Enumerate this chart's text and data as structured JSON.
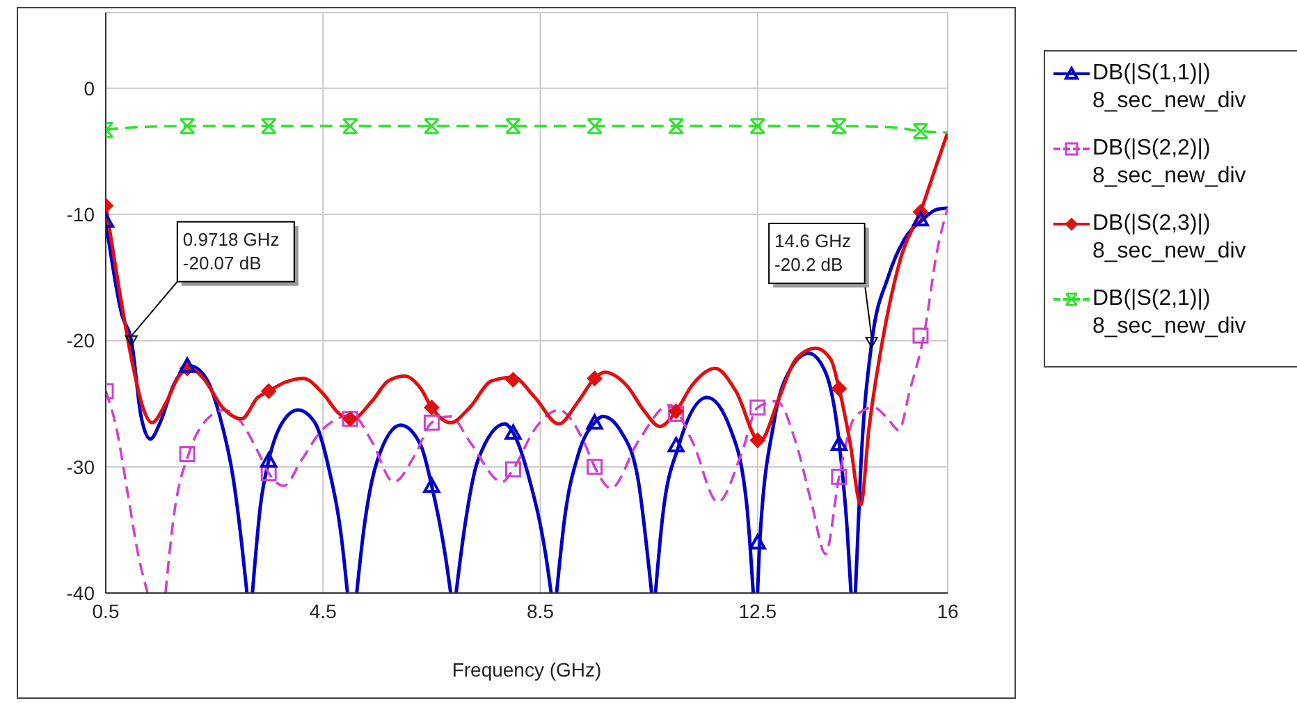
{
  "chart_data": {
    "type": "line",
    "xlabel": "Frequency (GHz)",
    "xlim": [
      0.5,
      16
    ],
    "xticks": [
      0.5,
      4.5,
      8.5,
      12.5,
      16
    ],
    "ylim": [
      -40,
      6
    ],
    "yticks": [
      0,
      -10,
      -20,
      -30,
      -40
    ],
    "grid": true,
    "legend": "right",
    "annotations": [
      {
        "text": "0.9718 GHz\n-20.07 dB",
        "x": 0.9718,
        "y": -20.07
      },
      {
        "text": "14.6 GHz\n-20.2 dB",
        "x": 14.6,
        "y": -20.2
      }
    ],
    "series": [
      {
        "name": "DB(|S(1,1)|)\n8_sec_new_div",
        "color": "#0000c8",
        "line_style": "solid",
        "x": [
          0.5,
          0.8,
          0.9718,
          1.15,
          1.32,
          1.5,
          1.75,
          2.05,
          2.35,
          2.6,
          2.85,
          3.0,
          3.1,
          3.15,
          3.2,
          3.35,
          3.5,
          3.75,
          4.04,
          4.35,
          4.6,
          4.85,
          4.95,
          5.03,
          5.12,
          5.25,
          5.5,
          5.93,
          6.3,
          6.5,
          6.75,
          6.85,
          6.9,
          6.95,
          7.1,
          7.35,
          7.85,
          8.0,
          8.3,
          8.6,
          8.7,
          8.75,
          8.8,
          8.95,
          9.2,
          9.5,
          9.65,
          10.0,
          10.3,
          10.5,
          10.55,
          10.58,
          10.62,
          10.75,
          11.05,
          11.57,
          12.0,
          12.3,
          12.42,
          12.46,
          12.5,
          12.54,
          12.8,
          13.1,
          13.44,
          13.75,
          14.0,
          14.15,
          14.22,
          14.26,
          14.3,
          14.4,
          14.6,
          14.9,
          15.2,
          15.54,
          15.8,
          16
        ],
        "values": [
          -10.5,
          -18,
          -20,
          -26,
          -27.8,
          -26.5,
          -23.5,
          -22,
          -23,
          -26,
          -31,
          -36,
          -40,
          null,
          -40,
          -33,
          -29.5,
          -26.5,
          -25.5,
          -26.5,
          -30,
          -36,
          -40,
          null,
          -40,
          -35,
          -29.5,
          -26.7,
          -28.3,
          -31.5,
          -37,
          -40,
          null,
          -40,
          -35,
          -29.5,
          -26.6,
          -27.3,
          -31,
          -37,
          -40,
          null,
          -40,
          -34,
          -29,
          -26.5,
          -26,
          -27.3,
          -31,
          -38,
          -40,
          null,
          -40,
          -34,
          -28.3,
          -24.5,
          -27,
          -33,
          -40,
          null,
          -40,
          -36,
          -26.5,
          -22.3,
          -21,
          -22.5,
          -28,
          -35,
          -40,
          null,
          -40,
          -30,
          -20.2,
          -15,
          -12,
          -10.4,
          -9.6,
          -9.5
        ]
      },
      {
        "name": "DB(|S(2,2)|)\n8_sec_new_div",
        "color": "#d040d0",
        "line_style": "dashed",
        "x": [
          0.5,
          0.7,
          0.9,
          1.1,
          1.27,
          1.4,
          1.6,
          1.75,
          2.04,
          2.35,
          2.68,
          3.0,
          3.3,
          3.5,
          3.78,
          4.1,
          4.5,
          5.04,
          5.4,
          5.8,
          6.2,
          6.5,
          6.85,
          7.2,
          7.8,
          8.0,
          8.4,
          8.84,
          9.3,
          9.5,
          9.8,
          10.3,
          10.88,
          11.3,
          11.77,
          12.2,
          12.5,
          12.85,
          13.2,
          13.5,
          13.75,
          14.0,
          14.3,
          14.64,
          14.9,
          15.1,
          15.3,
          15.57,
          15.8,
          16
        ],
        "values": [
          -24,
          -27,
          -32,
          -37,
          -40,
          null,
          -40,
          -34,
          -28.8,
          -26.3,
          -25.5,
          -26.5,
          -28.8,
          -30.5,
          -31.5,
          -29.5,
          -27,
          -25.9,
          -28,
          -31.2,
          -29,
          -26.5,
          -26,
          -28,
          -31.2,
          -30.2,
          -27,
          -25.5,
          -28,
          -30,
          -31.7,
          -28,
          -25.1,
          -28,
          -32.8,
          -29,
          -25.3,
          -24.8,
          -28,
          -33,
          -36.9,
          -30.8,
          -26,
          -25.3,
          -26.2,
          -27.1,
          -24,
          -19.4,
          -13,
          -9.5
        ]
      },
      {
        "name": "DB(|S(2,3)|)\n8_sec_new_div",
        "color": "#e01010",
        "line_style": "solid",
        "x": [
          0.5,
          0.75,
          1.0,
          1.2,
          1.35,
          1.6,
          1.85,
          2.05,
          2.3,
          2.65,
          3.0,
          3.3,
          3.5,
          3.8,
          4.14,
          4.5,
          4.8,
          5.04,
          5.4,
          5.7,
          6.0,
          6.3,
          6.5,
          6.85,
          7.2,
          7.6,
          8.0,
          8.4,
          8.84,
          9.2,
          9.5,
          9.68,
          10.1,
          10.4,
          10.7,
          11.0,
          11.3,
          11.72,
          12.1,
          12.54,
          12.9,
          13.2,
          13.57,
          13.85,
          14.0,
          14.2,
          14.4,
          14.55,
          14.8,
          15.1,
          15.54,
          15.8,
          16
        ],
        "values": [
          -9.3,
          -16,
          -22,
          -25.5,
          -26.5,
          -25,
          -22.8,
          -22.2,
          -23,
          -25.3,
          -26.2,
          -24.5,
          -24,
          -23.3,
          -23,
          -24.2,
          -25.8,
          -26.2,
          -24.8,
          -23.2,
          -22.8,
          -23.8,
          -25.3,
          -26.5,
          -25.3,
          -23.2,
          -22.9,
          -24.5,
          -26.6,
          -24.8,
          -23,
          -22.5,
          -23.6,
          -25.5,
          -26.8,
          -25.6,
          -23.5,
          -22.2,
          -24,
          -28,
          -24.5,
          -21.5,
          -20.6,
          -21.5,
          -23.8,
          -28,
          -33,
          -27,
          -20,
          -14,
          -9.3,
          -6,
          -3.5
        ]
      },
      {
        "name": "DB(|S(2,1)|)\n8_sec_new_div",
        "color": "#30e030",
        "line_style": "dashed",
        "x": [
          0.5,
          1,
          2,
          3,
          4,
          5,
          6,
          7,
          8,
          9,
          10,
          11,
          12,
          13,
          14,
          15,
          15.5,
          16
        ],
        "values": [
          -3.3,
          -3.1,
          -3,
          -3,
          -3,
          -3,
          -3,
          -3,
          -3,
          -3,
          -3,
          -3,
          -3,
          -3,
          -3,
          -3.1,
          -3.4,
          -3.5
        ]
      },
      {
        "type": "scatter",
        "color": "#d040d0",
        "marker": "square",
        "x": [
          0.5,
          2,
          3.5,
          5,
          6.5,
          8,
          9.5,
          11,
          12.5,
          14,
          15.5
        ],
        "values": [
          -24,
          -29,
          -30.5,
          -26.2,
          -26.5,
          -30.2,
          -30,
          -25.8,
          -25.3,
          -30.8,
          -19.6
        ]
      },
      {
        "type": "scatter",
        "color": "#e01010",
        "marker": "diamond",
        "x": [
          0.5,
          2,
          3.5,
          5,
          6.5,
          8,
          9.5,
          11,
          12.5,
          14,
          15.5
        ],
        "values": [
          -9.3,
          -22.2,
          -24,
          -26.2,
          -25.3,
          -23.1,
          -23,
          -25.6,
          -27.9,
          -23.8,
          -9.8
        ]
      },
      {
        "type": "scatter",
        "color": "#30e030",
        "marker": "cross",
        "x": [
          0.5,
          2,
          3.5,
          5,
          6.5,
          8,
          9.5,
          11,
          12.5,
          14,
          15.5
        ],
        "values": [
          -3.3,
          -3,
          -3,
          -3,
          -3,
          -3,
          -3,
          -3,
          -3,
          -3,
          -3.4
        ]
      },
      {
        "type": "scatter",
        "color": "#0000c8",
        "marker": "triangle",
        "x": [
          0.5,
          2,
          3.5,
          6.5,
          8,
          9.5,
          11,
          12.5,
          14,
          15.5
        ],
        "values": [
          -10.5,
          -22,
          -29.5,
          -31.5,
          -27.3,
          -26.5,
          -28.3,
          -36,
          -28.2,
          -10.4
        ]
      }
    ]
  }
}
